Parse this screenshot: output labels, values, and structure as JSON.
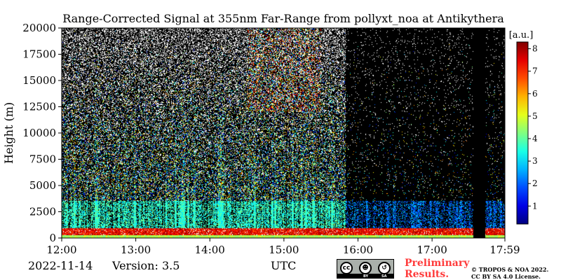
{
  "chart_data": {
    "type": "heatmap",
    "title": "Range-Corrected Signal at 355nm Far-Range from pollyxt_noa at Antikythera",
    "ylabel": "Height (m)",
    "xlabel": "UTC",
    "x_ticks": [
      "12:00",
      "13:00",
      "14:00",
      "15:00",
      "16:00",
      "17:00",
      "17:59"
    ],
    "y_ticks": [
      0,
      2500,
      5000,
      7500,
      10000,
      12500,
      15000,
      17500,
      20000
    ],
    "ylim": [
      0,
      20000
    ],
    "colorbar": {
      "label": "[a.u.]",
      "ticks": [
        1,
        2,
        3,
        4,
        5,
        6,
        7,
        8
      ],
      "range": [
        0.2,
        8.3
      ],
      "colormap": "jet"
    },
    "features": [
      {
        "name": "near-surface high signal band",
        "height_range": [
          300,
          1000
        ],
        "value": 7.5
      },
      {
        "name": "boundary layer",
        "height_range": [
          1000,
          3000
        ],
        "value": 3
      },
      {
        "name": "high-altitude cloud streaks",
        "time_range": [
          "14:30",
          "15:30"
        ],
        "height_range": [
          12000,
          20000
        ],
        "value": 7
      },
      {
        "name": "data gap",
        "time_range": [
          "17:33",
          "17:43"
        ]
      }
    ]
  },
  "footer": {
    "date": "2022-11-14",
    "version": "Version: 3.5",
    "preliminary_line1": "Preliminary",
    "preliminary_line2": "Results.",
    "copyright_line1": "© TROPOS & NOA 2022.",
    "copyright_line2": "CC BY SA 4.0 License.",
    "cc_symbols": [
      "cc",
      "by",
      "sa"
    ],
    "cc_labels": [
      "BY",
      "SA"
    ]
  },
  "colors": {
    "background_sky": "#000000",
    "noise_dots": "#ffffff",
    "preliminary": "#ff3b3b",
    "badge": "#aab0ab"
  }
}
